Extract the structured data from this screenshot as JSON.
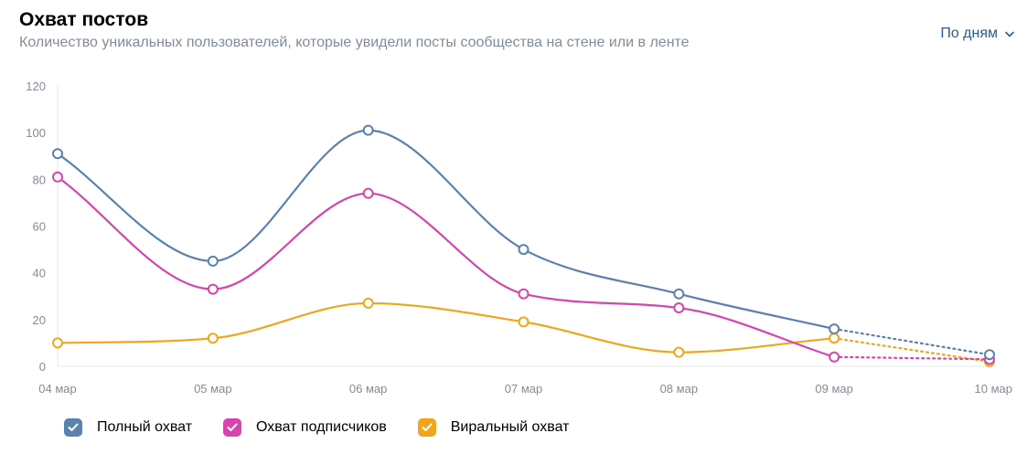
{
  "header": {
    "title": "Охват постов",
    "subtitle": "Количество уникальных пользователей, которые увидели посты сообщества на стене или в ленте",
    "period_label": "По дням"
  },
  "colors": {
    "series": [
      "#5b82ae",
      "#d645ad",
      "#f0a51a"
    ],
    "axis_text": "#818c99",
    "link": "#2d5b8d"
  },
  "legend": {
    "items": [
      {
        "label": "Полный охват",
        "checked": true
      },
      {
        "label": "Охват подписчиков",
        "checked": true
      },
      {
        "label": "Виральный охват",
        "checked": true
      }
    ]
  },
  "chart_data": {
    "type": "line",
    "title": "Охват постов",
    "xlabel": "",
    "ylabel": "",
    "categories": [
      "04 мар",
      "05 мар",
      "06 мар",
      "07 мар",
      "08 мар",
      "09 мар",
      "10 мар"
    ],
    "yticks": [
      0,
      20,
      40,
      60,
      80,
      100,
      120
    ],
    "ylim": [
      0,
      120
    ],
    "grid": false,
    "legend_position": "bottom-left",
    "dashed_from_index": 5,
    "series": [
      {
        "name": "Полный охват",
        "values": [
          91,
          45,
          101,
          50,
          31,
          16,
          5
        ]
      },
      {
        "name": "Охват подписчиков",
        "values": [
          81,
          33,
          74,
          31,
          25,
          4,
          3
        ]
      },
      {
        "name": "Виральный охват",
        "values": [
          10,
          12,
          27,
          19,
          6,
          12,
          2
        ]
      }
    ]
  }
}
